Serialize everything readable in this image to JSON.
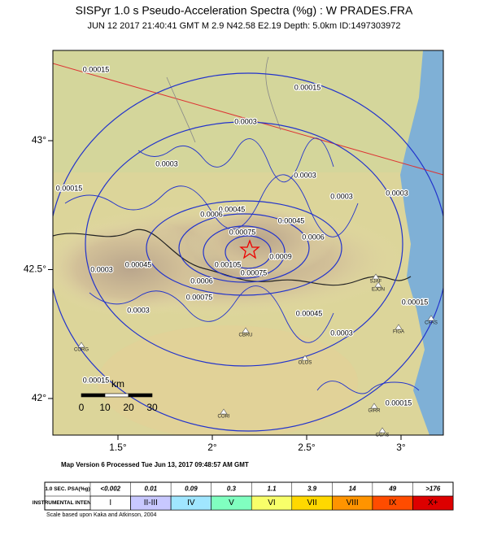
{
  "header": {
    "title": "SISPyr 1.0 s Pseudo-Acceleration Spectra (%g) : W PRADES.FRA",
    "subtitle": "JUN 12 2017 21:40:41  GMT   M 2.9   N42.58 E2.19   Depth: 5.0km   ID:1497303972"
  },
  "map": {
    "lon_ticks": [
      {
        "value": 1.5,
        "label": "1.5°"
      },
      {
        "value": 2,
        "label": "2°"
      },
      {
        "value": 2.5,
        "label": "2.5°"
      },
      {
        "value": 3,
        "label": "3°"
      }
    ],
    "lat_ticks": [
      {
        "value": 43,
        "label": "43°"
      },
      {
        "value": 42.5,
        "label": "42.5°"
      },
      {
        "value": 42,
        "label": "42°"
      }
    ],
    "contour_labels": [
      "0.00015",
      "0.00015",
      "0.00015",
      "0.00015",
      "0.00015",
      "0.00015",
      "0.0003",
      "0.0003",
      "0.0003",
      "0.0003",
      "0.0003",
      "0.0003",
      "0.0003",
      "0.0003",
      "0.00045",
      "0.00045",
      "0.00045",
      "0.00045",
      "0.0006",
      "0.0006",
      "0.0006",
      "0.00075",
      "0.00075",
      "0.00075",
      "0.0009",
      "0.00105"
    ],
    "stations": [
      "CBRU",
      "OLOS",
      "CORG",
      "CORI",
      "GIRR",
      "CCAS",
      "SJAF",
      "EJON",
      "FIGA",
      "CFAS"
    ],
    "scale": {
      "unit": "km",
      "labels": [
        "0",
        "10",
        "20",
        "30"
      ]
    }
  },
  "footer": {
    "processed": "Map Version 6 Processed Tue Jun 13, 2017 09:48:57 AM GMT",
    "reference": "Scale based upon Kaka and Atkinson, 2004"
  },
  "legend": {
    "row_headers": [
      "1.0 SEC. PSA(%g)",
      "INSTRUMENTAL INTENSITY"
    ],
    "psa": [
      "<0.002",
      "0.01",
      "0.09",
      "0.3",
      "1.1",
      "3.9",
      "14",
      "49",
      ">176"
    ],
    "intensity": [
      "I",
      "II-III",
      "IV",
      "V",
      "VI",
      "VII",
      "VIII",
      "IX",
      "X+"
    ],
    "colors": [
      "#ffffff",
      "#c8c8ff",
      "#a0e6ff",
      "#80ffc0",
      "#f8ff6a",
      "#ffd800",
      "#ff9400",
      "#ff4c00",
      "#dd0000"
    ]
  }
}
